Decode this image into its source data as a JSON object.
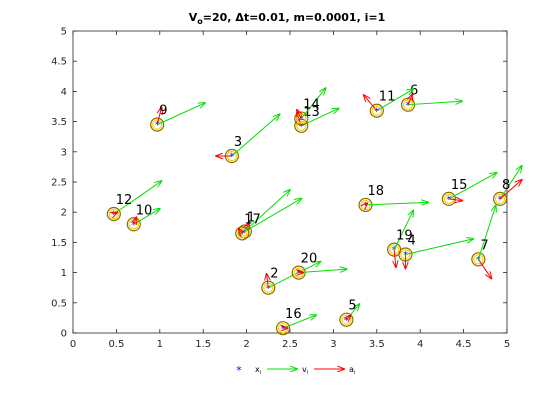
{
  "chart_data": {
    "type": "scatter",
    "title": {
      "main": "V",
      "sub_o": "o",
      "rest": "=20, Δt=0.01, m=0.0001, i=1"
    },
    "xlim": [
      0,
      5
    ],
    "ylim": [
      0,
      5
    ],
    "xticks": [
      "0",
      "0.5",
      "1",
      "1.5",
      "2",
      "2.5",
      "3",
      "3.5",
      "4",
      "4.5",
      "5"
    ],
    "yticks": [
      "0",
      "0.5",
      "1",
      "1.5",
      "2",
      "2.5",
      "3",
      "3.5",
      "4",
      "4.5",
      "5"
    ],
    "colors": {
      "position": "#0000ff",
      "ring": "#8c6d00",
      "velocity": "#00e000",
      "acceleration": "#ff0000"
    },
    "legend": {
      "placement": "bottom",
      "entries": [
        {
          "base": "x",
          "sub": "i"
        },
        {
          "base": "v",
          "sub": "i"
        },
        {
          "base": "a",
          "sub": "i"
        }
      ]
    },
    "particles": [
      {
        "id": "1",
        "x": 1.98,
        "y": 1.68,
        "v": [
          0.65,
          0.38
        ],
        "a": [
          0.05,
          0.1
        ]
      },
      {
        "id": "2",
        "x": 2.25,
        "y": 0.75,
        "v": [
          0.6,
          0.3
        ],
        "a": [
          -0.02,
          0.16
        ]
      },
      {
        "id": "3",
        "x": 1.83,
        "y": 2.93,
        "v": [
          0.55,
          0.48
        ],
        "a": [
          -0.18,
          0.0
        ]
      },
      {
        "id": "4",
        "x": 3.83,
        "y": 1.3,
        "v": [
          0.78,
          0.18
        ],
        "a": [
          0.0,
          -0.16
        ]
      },
      {
        "id": "5",
        "x": 3.15,
        "y": 0.22,
        "v": [
          0.15,
          0.18
        ],
        "a": [
          0.05,
          0.05
        ]
      },
      {
        "id": "6",
        "x": 3.86,
        "y": 3.78,
        "v": [
          0.62,
          0.04
        ],
        "a": [
          0.05,
          0.12
        ]
      },
      {
        "id": "7",
        "x": 4.67,
        "y": 1.22,
        "v": [
          0.2,
          0.62
        ],
        "a": [
          0.15,
          -0.22
        ]
      },
      {
        "id": "8",
        "x": 4.92,
        "y": 2.22,
        "v": [
          0.25,
          0.38
        ],
        "a": [
          0.25,
          0.22
        ]
      },
      {
        "id": "9",
        "x": 0.97,
        "y": 3.45,
        "v": [
          0.55,
          0.25
        ],
        "a": [
          0.05,
          0.2
        ]
      },
      {
        "id": "10",
        "x": 0.7,
        "y": 1.8,
        "v": [
          0.3,
          0.18
        ],
        "a": [
          0.03,
          0.08
        ]
      },
      {
        "id": "11",
        "x": 3.5,
        "y": 3.68,
        "v": [
          0.42,
          0.25
        ],
        "a": [
          -0.15,
          0.18
        ]
      },
      {
        "id": "12",
        "x": 0.47,
        "y": 1.97,
        "v": [
          0.55,
          0.38
        ],
        "a": [
          0.04,
          0.02
        ]
      },
      {
        "id": "13",
        "x": 2.63,
        "y": 3.43,
        "v": [
          0.43,
          0.2
        ],
        "a": [
          -0.05,
          0.15
        ]
      },
      {
        "id": "14",
        "x": 2.63,
        "y": 3.55,
        "v": [
          0.28,
          0.35
        ],
        "a": [
          -0.05,
          0.1
        ]
      },
      {
        "id": "15",
        "x": 4.33,
        "y": 2.22,
        "v": [
          0.55,
          0.3
        ],
        "a": [
          0.15,
          -0.02
        ]
      },
      {
        "id": "16",
        "x": 2.42,
        "y": 0.08,
        "v": [
          0.38,
          0.15
        ],
        "a": [
          0.05,
          0.0
        ]
      },
      {
        "id": "17",
        "x": 1.95,
        "y": 1.65,
        "v": [
          0.55,
          0.5
        ],
        "a": [
          -0.04,
          0.05
        ]
      },
      {
        "id": "18",
        "x": 3.37,
        "y": 2.12,
        "v": [
          0.72,
          0.03
        ],
        "a": [
          0.02,
          0.02
        ]
      },
      {
        "id": "19",
        "x": 3.7,
        "y": 1.38,
        "v": [
          0.22,
          0.45
        ],
        "a": [
          0.02,
          -0.2
        ]
      },
      {
        "id": "20",
        "x": 2.6,
        "y": 1.0,
        "v": [
          0.55,
          0.04
        ],
        "a": [
          0.05,
          0.0
        ]
      }
    ]
  }
}
